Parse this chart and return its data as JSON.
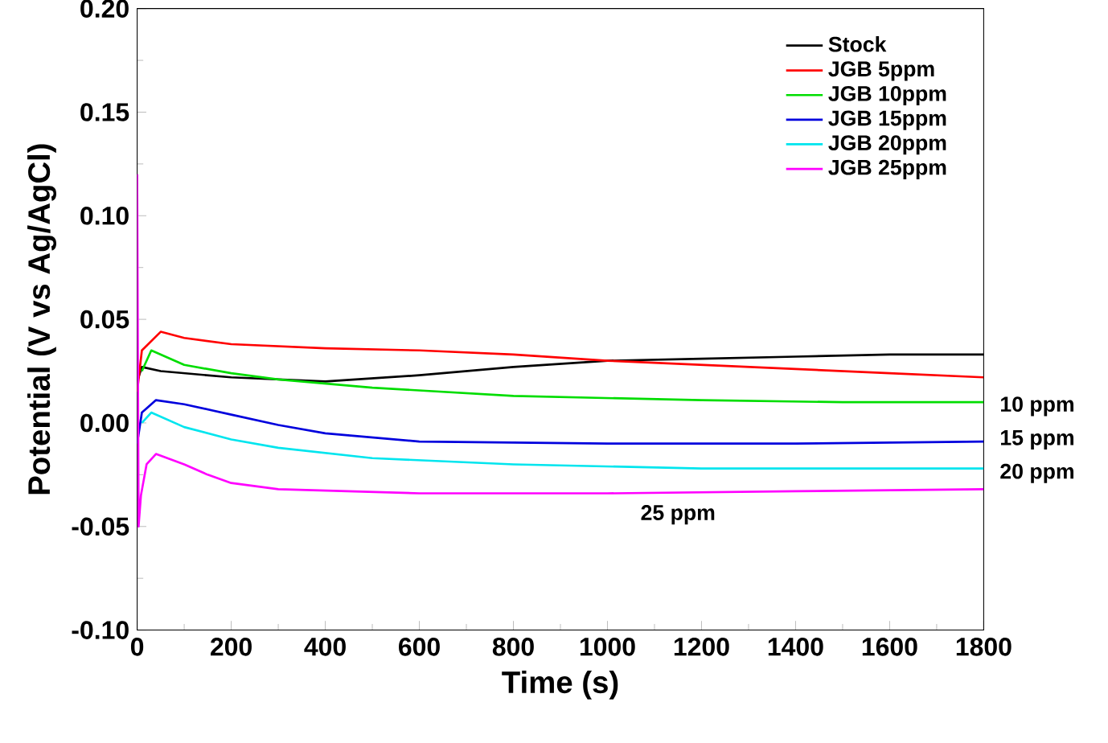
{
  "chart_data": {
    "type": "line",
    "xlabel": "Time (s)",
    "ylabel": "Potential (V vs Ag/AgCl)",
    "xlim": [
      0,
      1800
    ],
    "xticks": [
      0,
      200,
      400,
      600,
      800,
      1000,
      1200,
      1400,
      1600,
      1800
    ],
    "ylim": [
      -0.1,
      0.2
    ],
    "yticks": [
      {
        "value": -0.1,
        "label": "-0.10"
      },
      {
        "value": -0.05,
        "label": "-0.05"
      },
      {
        "value": 0,
        "label": "0.00"
      },
      {
        "value": 0.05,
        "label": "0.05"
      },
      {
        "value": 0.1,
        "label": "0.10"
      },
      {
        "value": 0.15,
        "label": "0.15"
      },
      {
        "value": 0.2,
        "label": "0.20"
      }
    ],
    "legend": "top right",
    "marker": "none",
    "line_style": "solid",
    "grid": false,
    "series": [
      {
        "name": "Stock",
        "color": "#000000",
        "x": [
          0,
          10,
          50,
          200,
          400,
          600,
          800,
          1000,
          1200,
          1400,
          1600,
          1800
        ],
        "values": [
          0.02,
          0.027,
          0.025,
          0.022,
          0.02,
          0.023,
          0.027,
          0.03,
          0.031,
          0.032,
          0.033,
          0.033
        ]
      },
      {
        "name": "JGB 5ppm",
        "color": "#ff0000",
        "x": [
          0,
          10,
          50,
          100,
          200,
          400,
          600,
          800,
          1000,
          1200,
          1400,
          1600,
          1800
        ],
        "values": [
          0.015,
          0.035,
          0.044,
          0.041,
          0.038,
          0.036,
          0.035,
          0.033,
          0.03,
          0.028,
          0.026,
          0.024,
          0.022
        ]
      },
      {
        "name": "JGB 10ppm",
        "color": "#00dd00",
        "x": [
          10,
          30,
          100,
          200,
          300,
          500,
          800,
          1200,
          1500,
          1800
        ],
        "values": [
          0.025,
          0.035,
          0.028,
          0.024,
          0.021,
          0.017,
          0.013,
          0.011,
          0.01,
          0.01
        ]
      },
      {
        "name": "JGB 15ppm",
        "color": "#0000dd",
        "x": [
          0,
          10,
          40,
          100,
          200,
          300,
          400,
          600,
          1000,
          1400,
          1800
        ],
        "values": [
          -0.01,
          0.005,
          0.011,
          0.009,
          0.004,
          -0.001,
          -0.005,
          -0.009,
          -0.01,
          -0.01,
          -0.009
        ]
      },
      {
        "name": "JGB 20ppm",
        "color": "#00e5ee",
        "x": [
          10,
          30,
          100,
          200,
          300,
          500,
          800,
          1200,
          1500,
          1800
        ],
        "values": [
          0.0,
          0.005,
          -0.002,
          -0.008,
          -0.012,
          -0.017,
          -0.02,
          -0.022,
          -0.022,
          -0.022
        ]
      },
      {
        "name": "JGB 25ppm",
        "color": "#ff00ff",
        "x": [
          0,
          3,
          8,
          20,
          40,
          100,
          150,
          200,
          300,
          600,
          1000,
          1400,
          1800
        ],
        "values": [
          0.12,
          -0.05,
          -0.035,
          -0.02,
          -0.015,
          -0.02,
          -0.025,
          -0.029,
          -0.032,
          -0.034,
          -0.034,
          -0.033,
          -0.032
        ]
      }
    ],
    "annotations": [
      "10 ppm",
      "15 ppm",
      "20 ppm",
      {
        "text": "25 ppm",
        "x": 1150,
        "y": -0.036
      }
    ]
  }
}
